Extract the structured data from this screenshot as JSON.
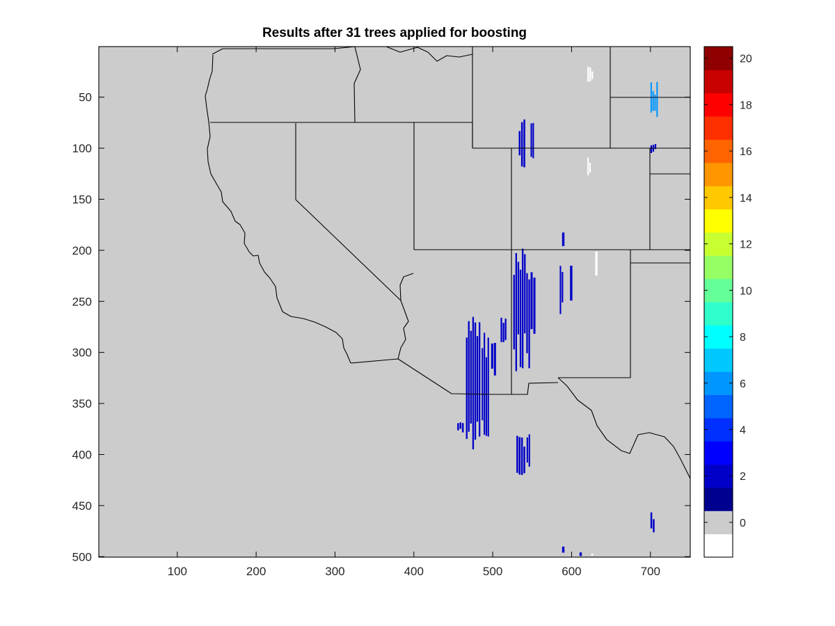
{
  "chart_data": {
    "type": "heatmap",
    "title": "Results after 31 trees applied for boosting",
    "xlabel": "",
    "ylabel": "",
    "xlim": [
      1,
      750
    ],
    "ylim": [
      1,
      500
    ],
    "y_reversed": true,
    "x_ticks": [
      100,
      200,
      300,
      400,
      500,
      600,
      700
    ],
    "y_ticks": [
      50,
      100,
      150,
      200,
      250,
      300,
      350,
      400,
      450,
      500
    ],
    "background_value": 0.5,
    "background_color": "#cccccc",
    "grid": false,
    "colorbar": {
      "location": "right",
      "range": [
        -1,
        20
      ],
      "ticks": [
        0,
        2,
        4,
        6,
        8,
        10,
        12,
        14,
        16,
        18,
        20
      ],
      "bins": [
        {
          "from": -1,
          "to": 0,
          "color": "#ffffff"
        },
        {
          "from": 0,
          "to": 1,
          "color": "#cccccc"
        },
        {
          "from": 1,
          "to": 2,
          "color": "#00008f"
        },
        {
          "from": 2,
          "to": 3,
          "color": "#0000c8"
        },
        {
          "from": 3,
          "to": 4,
          "color": "#0000ff"
        },
        {
          "from": 4,
          "to": 5,
          "color": "#0030ff"
        },
        {
          "from": 5,
          "to": 6,
          "color": "#0064ff"
        },
        {
          "from": 6,
          "to": 7,
          "color": "#0096ff"
        },
        {
          "from": 7,
          "to": 8,
          "color": "#00c8ff"
        },
        {
          "from": 8,
          "to": 9,
          "color": "#00ffff"
        },
        {
          "from": 9,
          "to": 10,
          "color": "#30ffcc"
        },
        {
          "from": 10,
          "to": 11,
          "color": "#64ff98"
        },
        {
          "from": 11,
          "to": 12,
          "color": "#96ff64"
        },
        {
          "from": 12,
          "to": 13,
          "color": "#c8ff30"
        },
        {
          "from": 13,
          "to": 14,
          "color": "#ffff00"
        },
        {
          "from": 14,
          "to": 15,
          "color": "#ffc800"
        },
        {
          "from": 15,
          "to": 16,
          "color": "#ff9600"
        },
        {
          "from": 16,
          "to": 17,
          "color": "#ff6400"
        },
        {
          "from": 17,
          "to": 18,
          "color": "#ff3000"
        },
        {
          "from": 18,
          "to": 19,
          "color": "#ff0000"
        },
        {
          "from": 19,
          "to": 20,
          "color": "#c80000"
        },
        {
          "from": 20,
          "to": 21,
          "color": "#8f0000"
        }
      ]
    },
    "data_patches": [
      {
        "value": 2,
        "color": "#0000c8",
        "x": [
          533,
          542
        ],
        "y": [
          70,
          120
        ]
      },
      {
        "value": 2,
        "color": "#0000c8",
        "x": [
          548,
          553
        ],
        "y": [
          75,
          110
        ]
      },
      {
        "value": 6,
        "color": "#0096ff",
        "x": [
          700,
          710
        ],
        "y": [
          35,
          70
        ]
      },
      {
        "value": 2,
        "color": "#0000c8",
        "x": [
          700,
          708
        ],
        "y": [
          95,
          105
        ]
      },
      {
        "value": 2,
        "color": "#0000c8",
        "x": [
          588,
          592
        ],
        "y": [
          178,
          198
        ]
      },
      {
        "value": 2,
        "color": "#0000c8",
        "x": [
          526,
          548
        ],
        "y": [
          198,
          325
        ]
      },
      {
        "value": 2,
        "color": "#0000c8",
        "x": [
          548,
          555
        ],
        "y": [
          205,
          320
        ]
      },
      {
        "value": 2,
        "color": "#0000c8",
        "x": [
          585,
          590
        ],
        "y": [
          215,
          265
        ]
      },
      {
        "value": 2,
        "color": "#0000c8",
        "x": [
          598,
          602
        ],
        "y": [
          210,
          250
        ]
      },
      {
        "value": 2,
        "color": "#0000c8",
        "x": [
          466,
          485
        ],
        "y": [
          265,
          395
        ]
      },
      {
        "value": 2,
        "color": "#0000c8",
        "x": [
          486,
          496
        ],
        "y": [
          280,
          385
        ]
      },
      {
        "value": 2,
        "color": "#0000c8",
        "x": [
          455,
          464
        ],
        "y": [
          368,
          380
        ]
      },
      {
        "value": 2,
        "color": "#0000c8",
        "x": [
          498,
          505
        ],
        "y": [
          290,
          340
        ]
      },
      {
        "value": 2,
        "color": "#0000c8",
        "x": [
          510,
          518
        ],
        "y": [
          265,
          290
        ]
      },
      {
        "value": 2,
        "color": "#0000c8",
        "x": [
          530,
          542
        ],
        "y": [
          378,
          420
        ]
      },
      {
        "value": 2,
        "color": "#0000c8",
        "x": [
          543,
          548
        ],
        "y": [
          380,
          412
        ]
      },
      {
        "value": 2,
        "color": "#0000c8",
        "x": [
          700,
          706
        ],
        "y": [
          455,
          478
        ]
      },
      {
        "value": 2,
        "color": "#0000c8",
        "x": [
          588,
          592
        ],
        "y": [
          490,
          500
        ]
      },
      {
        "value": 2,
        "color": "#0000c8",
        "x": [
          610,
          614
        ],
        "y": [
          493,
          500
        ]
      },
      {
        "value": -1,
        "color": "#ffffff",
        "x": [
          620,
          628
        ],
        "y": [
          20,
          35
        ]
      },
      {
        "value": -1,
        "color": "#ffffff",
        "x": [
          620,
          625
        ],
        "y": [
          108,
          128
        ]
      },
      {
        "value": -1,
        "color": "#ffffff",
        "x": [
          630,
          634
        ],
        "y": [
          200,
          230
        ]
      },
      {
        "value": -1,
        "color": "#ffffff",
        "x": [
          625,
          628
        ],
        "y": [
          497,
          500
        ]
      }
    ]
  }
}
